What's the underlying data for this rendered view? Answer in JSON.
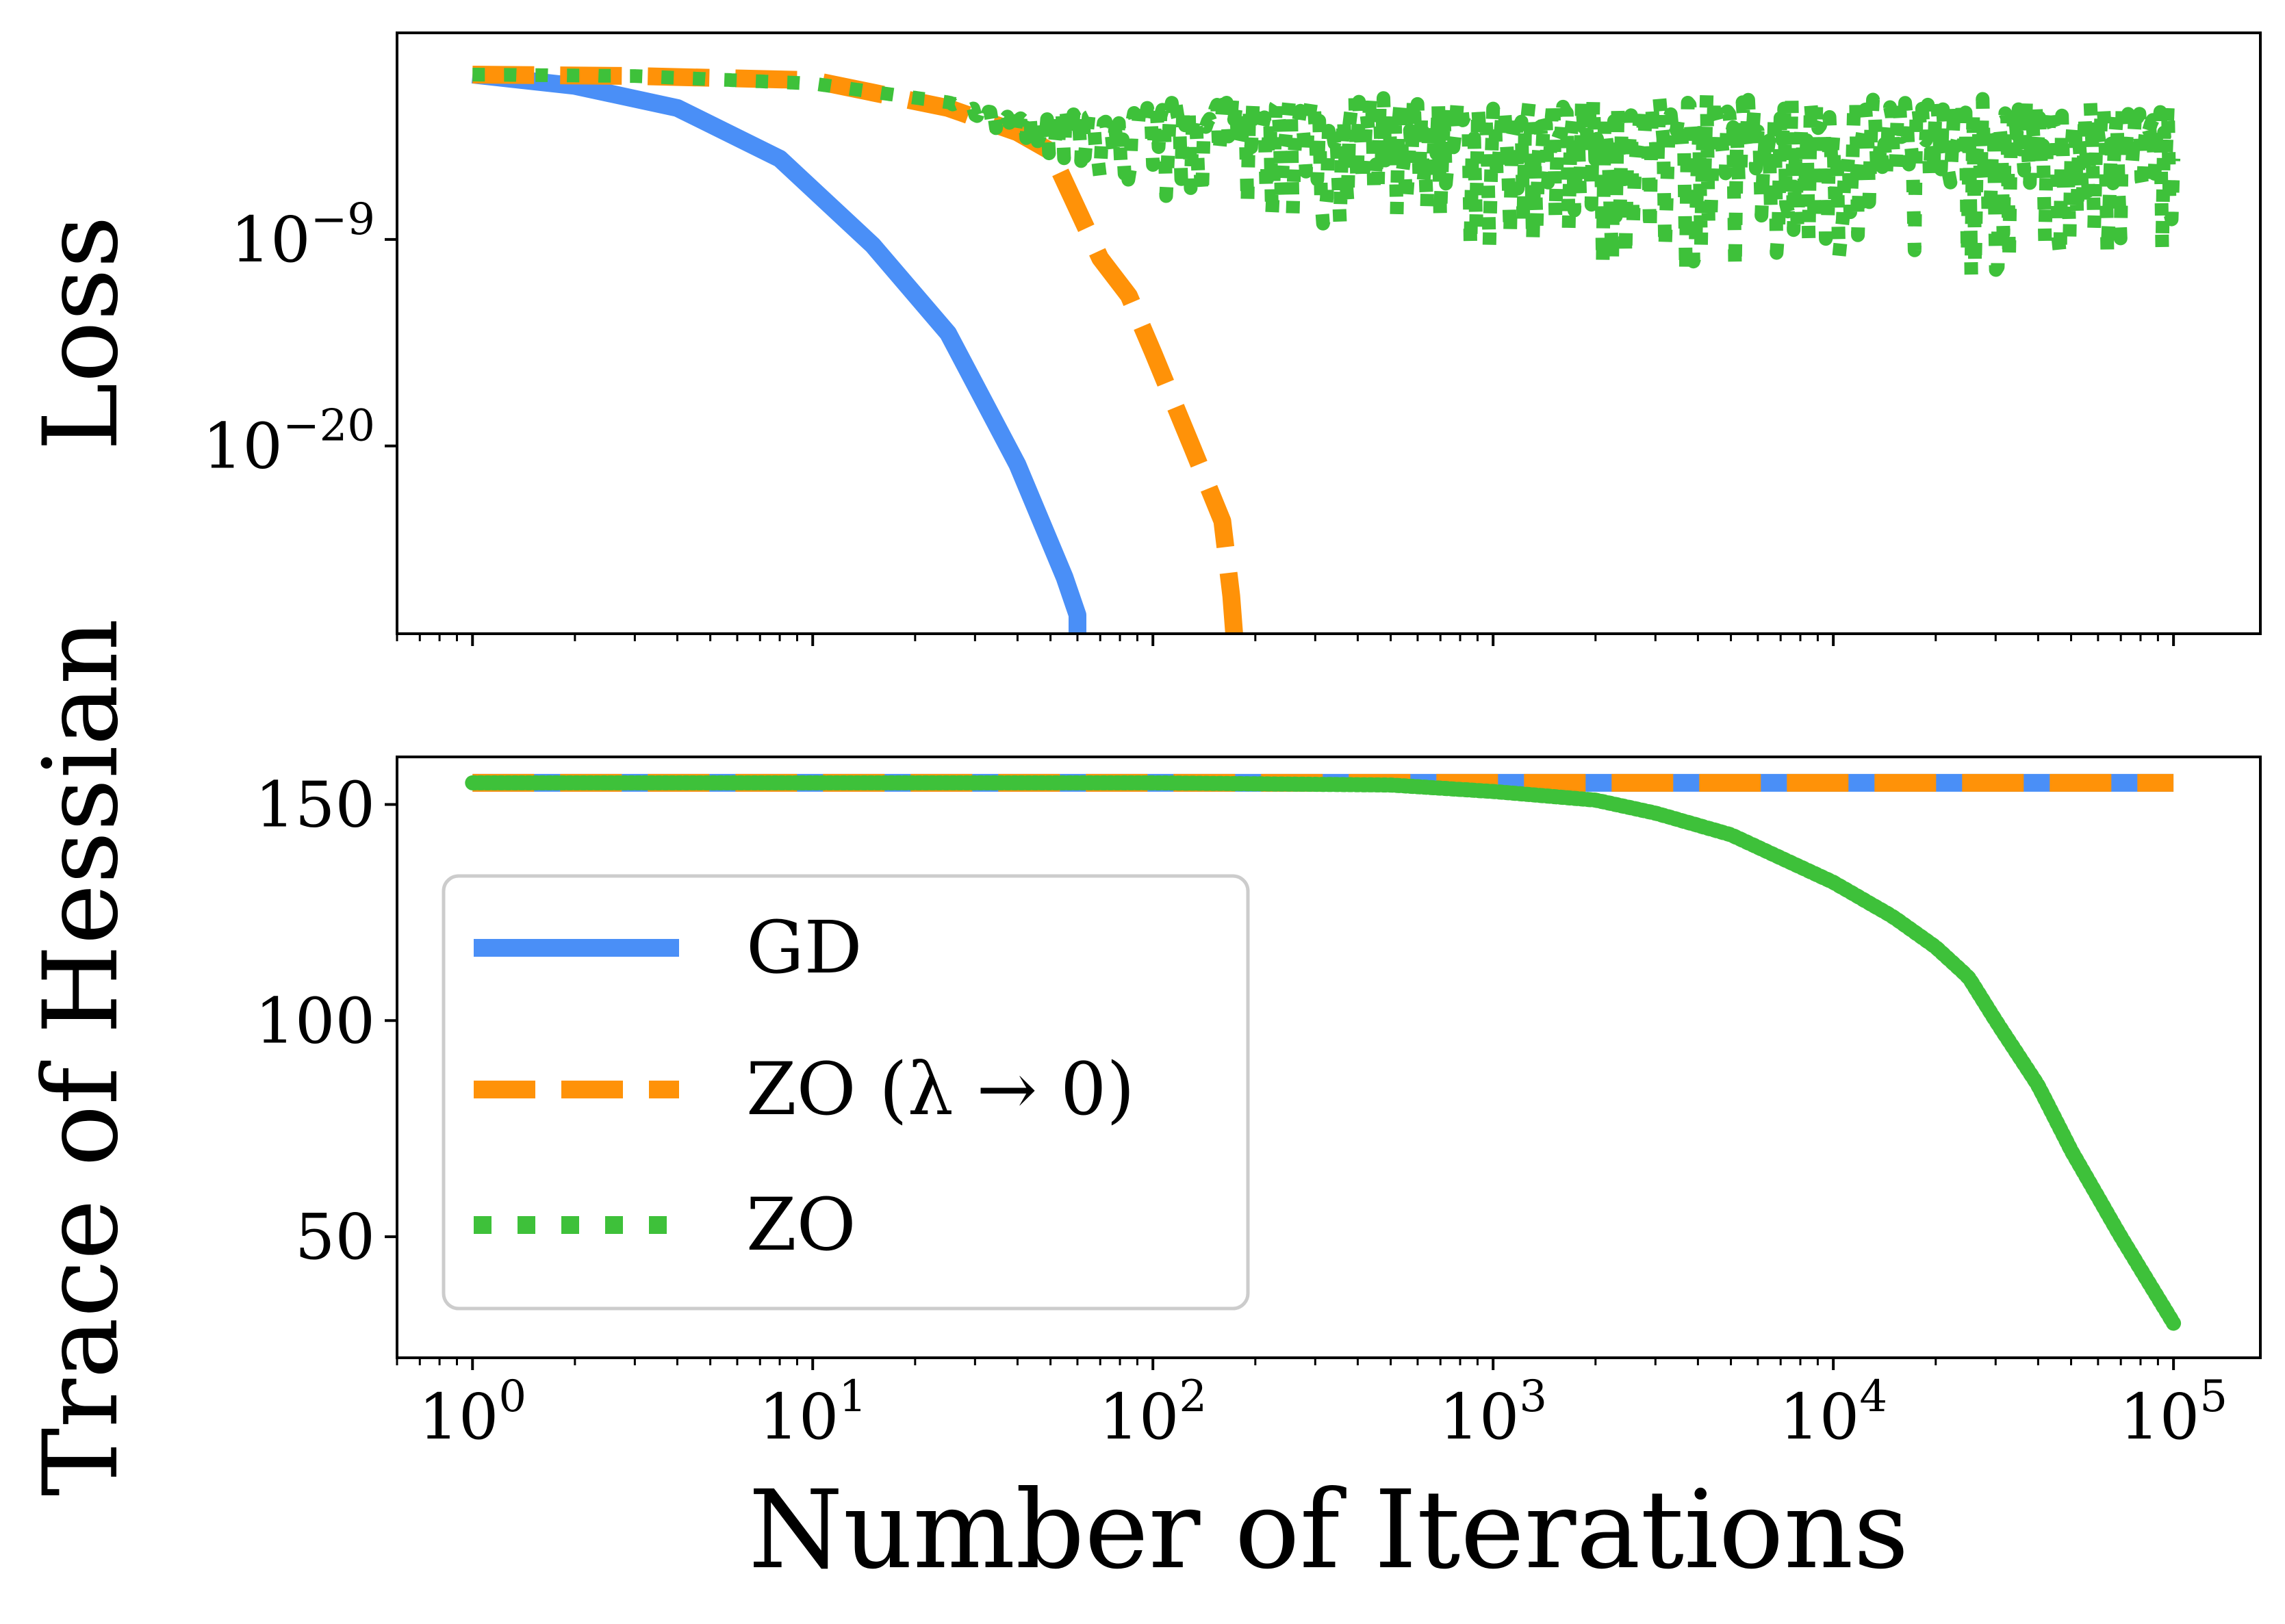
{
  "chart_data": [
    {
      "type": "line",
      "panel": "top",
      "ylabel": "Loss",
      "xscale": "log",
      "yscale": "log",
      "xlim": [
        0.6,
        180000
      ],
      "ylim": [
        1e-30,
        100.0
      ],
      "x_ticks": [
        1,
        10,
        100,
        1000,
        10000,
        100000
      ],
      "y_ticks": [
        {
          "value": 1e-09,
          "base": "10",
          "exp": "−9"
        },
        {
          "value": 1e-20,
          "base": "10",
          "exp": "−20"
        }
      ],
      "series": [
        {
          "name": "GD",
          "style": "solid",
          "color": "#4a8ff7",
          "x": [
            1,
            2,
            4,
            8,
            15,
            25,
            40,
            55,
            60,
            60
          ],
          "y": [
            0.6,
            0.15,
            0.01,
            2e-05,
            5e-10,
            1e-14,
            1e-21,
            1e-27,
            1e-29,
            1e-31
          ]
        },
        {
          "name": "ZO (λ → 0)",
          "style": "dashed",
          "color": "#ff9208",
          "x": [
            1,
            3,
            10,
            25,
            40,
            50,
            70,
            85,
            100,
            130,
            160,
            170,
            175
          ],
          "y": [
            0.6,
            0.5,
            0.3,
            0.01,
            0.0005,
            5e-05,
            1e-10,
            1e-12,
            1e-15,
            1e-20,
            1e-24,
            1e-28,
            1e-31
          ]
        },
        {
          "name": "ZO",
          "style": "dotted",
          "color": "#3ec13a",
          "x": [
            1,
            3,
            10,
            25,
            40,
            60,
            100,
            200,
            500,
            1000,
            3000,
            10000,
            30000,
            100000
          ],
          "y": [
            0.6,
            0.5,
            0.2,
            0.02,
            0.002,
            0.001,
            0.002,
            0.001,
            0.0005,
            0.0003,
            0.0002,
            0.0002,
            0.0001,
            0.0001
          ],
          "noise_low": [
            0.6,
            0.5,
            0.2,
            0.02,
            0.0002,
            5e-06,
            1e-07,
            1e-08,
            1e-09,
            1e-10,
            1e-11,
            1e-11,
            1e-11,
            1e-10
          ],
          "noise_high": [
            0.6,
            0.5,
            0.2,
            0.02,
            0.003,
            0.02,
            0.02,
            0.05,
            0.05,
            0.03,
            0.05,
            0.05,
            0.03,
            0.02
          ]
        }
      ]
    },
    {
      "type": "line",
      "panel": "bottom",
      "ylabel": "Trace of Hessian",
      "xlabel": "Number of Iterations",
      "xscale": "log",
      "xlim": [
        0.6,
        180000
      ],
      "ylim": [
        22,
        161
      ],
      "x_ticks": [
        {
          "value": 1,
          "base": "10",
          "exp": "0"
        },
        {
          "value": 10,
          "base": "10",
          "exp": "1"
        },
        {
          "value": 100,
          "base": "10",
          "exp": "2"
        },
        {
          "value": 1000,
          "base": "10",
          "exp": "3"
        },
        {
          "value": 10000,
          "base": "10",
          "exp": "4"
        },
        {
          "value": 100000,
          "base": "10",
          "exp": "5"
        }
      ],
      "y_ticks": [
        50,
        100,
        150
      ],
      "series": [
        {
          "name": "GD",
          "style": "solid",
          "color": "#4a8ff7",
          "x": [
            1,
            100000
          ],
          "y": [
            155,
            155
          ]
        },
        {
          "name": "ZO (λ → 0)",
          "style": "dashed",
          "color": "#ff9208",
          "x": [
            1,
            100000
          ],
          "y": [
            155,
            155
          ]
        },
        {
          "name": "ZO",
          "style": "dotted",
          "color": "#3ec13a",
          "x": [
            1,
            100,
            500,
            1000,
            2000,
            3000,
            5000,
            10000,
            15000,
            20000,
            25000,
            30000,
            40000,
            50000,
            70000,
            100000
          ],
          "y": [
            155,
            155,
            154.5,
            153,
            151,
            148,
            143,
            132,
            124,
            117,
            110,
            100,
            85,
            70,
            50,
            30
          ]
        }
      ],
      "legend": {
        "position": "lower-left",
        "entries": [
          {
            "label": "GD",
            "style": "solid",
            "color": "#4a8ff7"
          },
          {
            "label": "ZO (λ → 0)",
            "style": "dashed",
            "color": "#ff9208"
          },
          {
            "label": "ZO",
            "style": "dotted",
            "color": "#3ec13a"
          }
        ]
      }
    }
  ]
}
